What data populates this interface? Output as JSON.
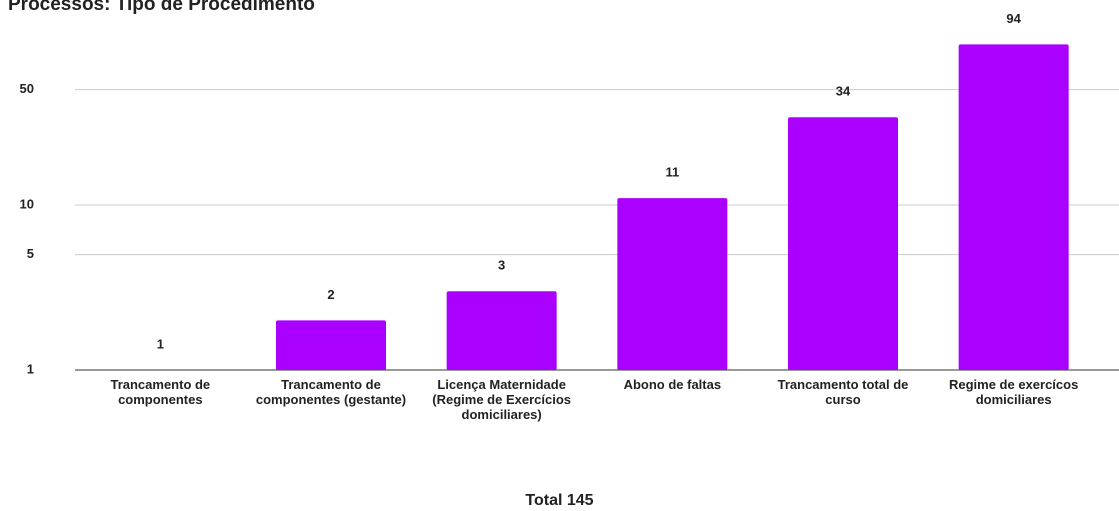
{
  "chart_data": {
    "type": "bar",
    "title": "Processos: Tipo de Procedimento",
    "x_label": "Total 145",
    "categories": [
      "Trancamento de componentes",
      "Trancamento de componentes (gestante)",
      "Licença Maternidade (Regime de Exercícios domiciliares)",
      "Abono de faltas",
      "Trancamento total de curso",
      "Regime de exercícos domiciliares"
    ],
    "values": [
      1,
      2,
      3,
      11,
      34,
      94
    ],
    "color": "#aa00ff",
    "log_scale": true,
    "ylim": [
      1,
      100
    ],
    "yticks": [
      1,
      5,
      10,
      50
    ],
    "grid": true
  }
}
